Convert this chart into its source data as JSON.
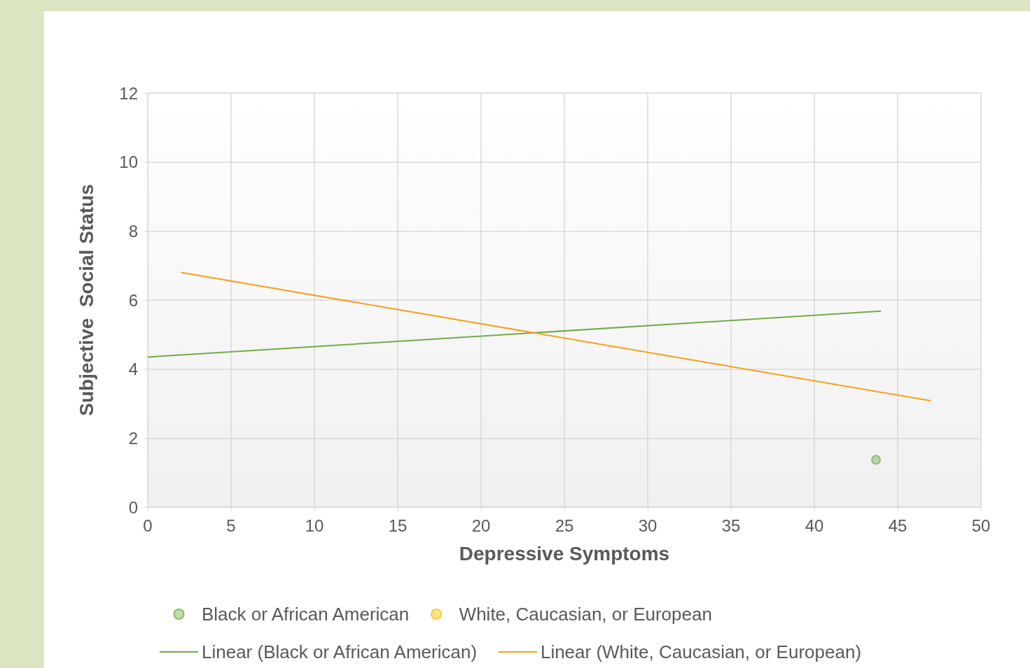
{
  "chart_data": {
    "type": "scatter",
    "xlabel": "Depressive Symptoms",
    "ylabel": "Subjective  Social Status",
    "xlim": [
      0,
      50
    ],
    "xticks": [
      0,
      5,
      10,
      15,
      20,
      25,
      30,
      35,
      40,
      45,
      50
    ],
    "ylim": [
      0,
      12
    ],
    "yticks": [
      0,
      2,
      4,
      6,
      8,
      10,
      12
    ],
    "grid": true,
    "legend": "bottom",
    "series": [
      {
        "name": "Black or African American",
        "marker": "circle",
        "color": "#70ad47",
        "x": [
          43.7
        ],
        "values": [
          1.37
        ]
      },
      {
        "name": "White, Caucasian, or European",
        "marker": "circle",
        "color": "#ffc000"
      },
      {
        "name": "Linear (Black or African American)",
        "type": "line",
        "marker": "none",
        "color": "#70ad47",
        "x": [
          0,
          44
        ],
        "values": [
          4.35,
          5.68
        ]
      },
      {
        "name": "Linear (White, Caucasian, or European)",
        "type": "line",
        "marker": "none",
        "color": "#f4a21c",
        "x": [
          2,
          47
        ],
        "values": [
          6.8,
          3.08
        ]
      }
    ]
  }
}
